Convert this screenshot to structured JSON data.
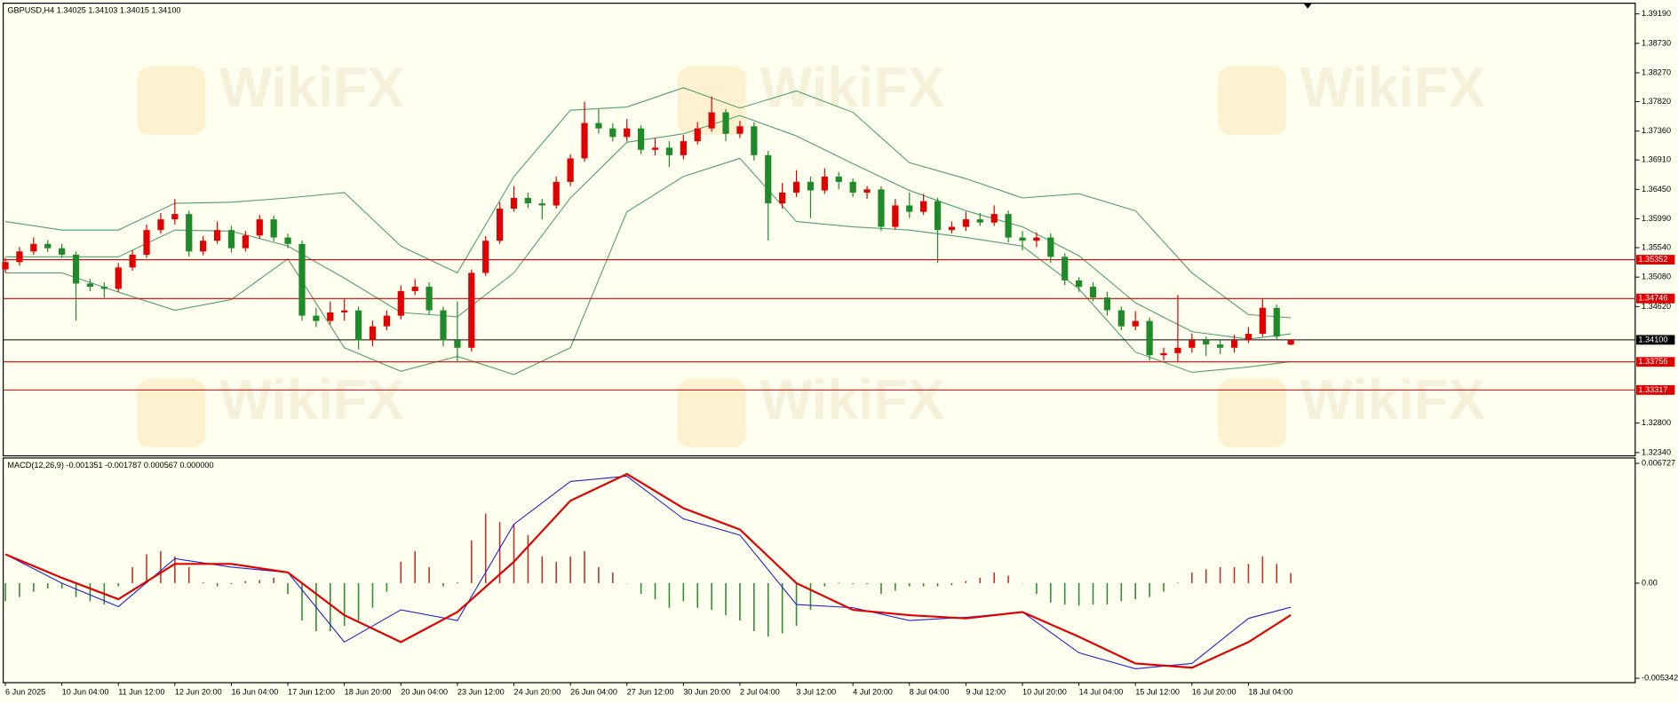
{
  "watermark": "WikiFX",
  "chart_data": [
    {
      "type": "candlestick",
      "title": "GBPUSD,H4  1.34025 1.34103 1.34015 1.34100",
      "categories": [
        "6 Jun 2025",
        null,
        null,
        null,
        "10 Jun 04:00",
        null,
        null,
        null,
        "11 Jun 12:00",
        null,
        null,
        null,
        "12 Jun 20:00",
        null,
        null,
        null,
        "16 Jun 04:00",
        null,
        null,
        null,
        "17 Jun 12:00",
        null,
        null,
        null,
        "18 Jun 20:00",
        null,
        null,
        null,
        "20 Jun 04:00",
        null,
        null,
        null,
        "23 Jun 12:00",
        null,
        null,
        null,
        "24 Jun 20:00",
        null,
        null,
        null,
        "26 Jun 04:00",
        null,
        null,
        null,
        "27 Jun 12:00",
        null,
        null,
        null,
        "30 Jun 20:00",
        null,
        null,
        null,
        "2 Jul 04:00",
        null,
        null,
        null,
        "3 Jul 12:00",
        null,
        null,
        null,
        "4 Jul 20:00",
        null,
        null,
        null,
        "8 Jul 04:00",
        null,
        null,
        null,
        "9 Jul 12:00",
        null,
        null,
        null,
        "10 Jul 20:00",
        null,
        null,
        null,
        "14 Jul 04:00",
        null,
        null,
        null,
        "15 Jul 12:00",
        null,
        null,
        null,
        "16 Jul 20:00",
        null,
        null,
        null,
        "18 Jul 04:00",
        null,
        null,
        null
      ],
      "candles": [
        [
          1.352,
          1.3538,
          1.3515,
          1.35314
        ],
        [
          1.35314,
          1.3555,
          1.3526,
          1.35481
        ],
        [
          1.35481,
          1.357,
          1.3543,
          1.35598
        ],
        [
          1.35598,
          1.3566,
          1.3547,
          1.35531
        ],
        [
          1.35531,
          1.356,
          1.3538,
          1.3543
        ],
        [
          1.3543,
          1.3548,
          1.344,
          1.34979
        ],
        [
          1.34979,
          1.3505,
          1.3486,
          1.34929
        ],
        [
          1.34929,
          1.35,
          1.3476,
          1.34896
        ],
        [
          1.34896,
          1.353,
          1.3485,
          1.3523
        ],
        [
          1.3523,
          1.355,
          1.3518,
          1.3543
        ],
        [
          1.3543,
          1.359,
          1.3538,
          1.35815
        ],
        [
          1.35815,
          1.3608,
          1.3576,
          1.35982
        ],
        [
          1.35982,
          1.363,
          1.359,
          1.36065
        ],
        [
          1.36065,
          1.3612,
          1.354,
          1.35481
        ],
        [
          1.35481,
          1.3572,
          1.3542,
          1.35648
        ],
        [
          1.35648,
          1.3595,
          1.356,
          1.35815
        ],
        [
          1.35815,
          1.3588,
          1.3546,
          1.35531
        ],
        [
          1.35531,
          1.358,
          1.3548,
          1.35731
        ],
        [
          1.35731,
          1.3605,
          1.3568,
          1.35982
        ],
        [
          1.35982,
          1.3604,
          1.3564,
          1.35698
        ],
        [
          1.35698,
          1.3576,
          1.3553,
          1.35598
        ],
        [
          1.35598,
          1.3565,
          1.344,
          1.34478
        ],
        [
          1.34478,
          1.346,
          1.343,
          1.34395
        ],
        [
          1.34395,
          1.347,
          1.3434,
          1.34528
        ],
        [
          1.34528,
          1.3474,
          1.344,
          1.3456
        ],
        [
          1.3456,
          1.3462,
          1.3395,
          1.34094
        ],
        [
          1.34094,
          1.344,
          1.34,
          1.34311
        ],
        [
          1.34311,
          1.3456,
          1.3425,
          1.34478
        ],
        [
          1.34478,
          1.3495,
          1.3442,
          1.34862
        ],
        [
          1.34862,
          1.3505,
          1.348,
          1.34929
        ],
        [
          1.34929,
          1.35,
          1.345,
          1.34562
        ],
        [
          1.34562,
          1.3462,
          1.34,
          1.34094
        ],
        [
          1.34094,
          1.347,
          1.3375,
          1.33977
        ],
        [
          1.33977,
          1.352,
          1.3392,
          1.35146
        ],
        [
          1.35146,
          1.3572,
          1.351,
          1.35648
        ],
        [
          1.35648,
          1.3625,
          1.356,
          1.36149
        ],
        [
          1.36149,
          1.365,
          1.361,
          1.36316
        ],
        [
          1.36316,
          1.364,
          1.3616,
          1.36232
        ],
        [
          1.36232,
          1.363,
          1.3598,
          1.36199
        ],
        [
          1.36199,
          1.3665,
          1.3615,
          1.36567
        ],
        [
          1.36567,
          1.37,
          1.365,
          1.36934
        ],
        [
          1.36934,
          1.3782,
          1.3688,
          1.37486
        ],
        [
          1.37486,
          1.377,
          1.3732,
          1.37402
        ],
        [
          1.37402,
          1.3748,
          1.372,
          1.37268
        ],
        [
          1.37268,
          1.3755,
          1.372,
          1.37402
        ],
        [
          1.37402,
          1.3745,
          1.37,
          1.37068
        ],
        [
          1.37068,
          1.3725,
          1.3698,
          1.37101
        ],
        [
          1.37101,
          1.372,
          1.368,
          1.36984
        ],
        [
          1.36984,
          1.373,
          1.3692,
          1.37202
        ],
        [
          1.37202,
          1.375,
          1.3715,
          1.37402
        ],
        [
          1.37402,
          1.379,
          1.3735,
          1.37653
        ],
        [
          1.37653,
          1.377,
          1.372,
          1.37318
        ],
        [
          1.37318,
          1.3752,
          1.3725,
          1.37435
        ],
        [
          1.37435,
          1.375,
          1.369,
          1.36984
        ],
        [
          1.36984,
          1.3705,
          1.3565,
          1.36232
        ],
        [
          1.36232,
          1.3655,
          1.3615,
          1.364
        ],
        [
          1.364,
          1.3675,
          1.3633,
          1.36567
        ],
        [
          1.36567,
          1.3665,
          1.36,
          1.36433
        ],
        [
          1.36433,
          1.3678,
          1.3638,
          1.3665
        ],
        [
          1.3665,
          1.3672,
          1.3645,
          1.36567
        ],
        [
          1.36567,
          1.3662,
          1.3633,
          1.364
        ],
        [
          1.364,
          1.365,
          1.363,
          1.3645
        ],
        [
          1.3645,
          1.365,
          1.358,
          1.35865
        ],
        [
          1.35865,
          1.363,
          1.3582,
          1.36199
        ],
        [
          1.36199,
          1.364,
          1.36,
          1.36099
        ],
        [
          1.36099,
          1.3638,
          1.3605,
          1.36266
        ],
        [
          1.36266,
          1.3632,
          1.353,
          1.35815
        ],
        [
          1.35815,
          1.3595,
          1.3576,
          1.35865
        ],
        [
          1.35865,
          1.361,
          1.358,
          1.35982
        ],
        [
          1.35982,
          1.3608,
          1.3588,
          1.35932
        ],
        [
          1.35932,
          1.362,
          1.3588,
          1.36065
        ],
        [
          1.36065,
          1.3612,
          1.3562,
          1.35698
        ],
        [
          1.35698,
          1.358,
          1.355,
          1.35648
        ],
        [
          1.35648,
          1.3578,
          1.3555,
          1.35698
        ],
        [
          1.35698,
          1.3576,
          1.353,
          1.35397
        ],
        [
          1.35397,
          1.3545,
          1.3495,
          1.35029
        ],
        [
          1.35029,
          1.3508,
          1.3485,
          1.34929
        ],
        [
          1.34929,
          1.35,
          1.347,
          1.34762
        ],
        [
          1.34762,
          1.3485,
          1.3448,
          1.34562
        ],
        [
          1.34562,
          1.3462,
          1.3425,
          1.34311
        ],
        [
          1.34311,
          1.3455,
          1.3425,
          1.34395
        ],
        [
          1.34395,
          1.3445,
          1.3378,
          1.3386
        ],
        [
          1.3386,
          1.3398,
          1.3378,
          1.33893
        ],
        [
          1.33893,
          1.348,
          1.3375,
          1.33977
        ],
        [
          1.33977,
          1.342,
          1.339,
          1.34094
        ],
        [
          1.34094,
          1.3415,
          1.3385,
          1.34027
        ],
        [
          1.34027,
          1.341,
          1.3388,
          1.33977
        ],
        [
          1.33977,
          1.3418,
          1.339,
          1.34094
        ],
        [
          1.34094,
          1.343,
          1.3405,
          1.34194
        ],
        [
          1.34194,
          1.3475,
          1.3415,
          1.346
        ],
        [
          1.346,
          1.3465,
          1.341,
          1.3415
        ],
        [
          1.34025,
          1.34103,
          1.34015,
          1.341
        ]
      ],
      "up_color": "#e00000",
      "down_color": "#1f8a2a",
      "overlay": {
        "type": "line",
        "x": [
          0,
          4,
          8,
          12,
          16,
          20,
          24,
          28,
          32,
          36,
          40,
          44,
          48,
          52,
          56,
          60,
          64,
          68,
          72,
          76,
          80,
          84,
          88,
          91
        ],
        "series": [
          {
            "color": "#4f9e6e",
            "values": [
              1.35948,
              1.35815,
              1.35815,
              1.36232,
              1.36249,
              1.36316,
              1.364,
              1.35564,
              1.35146,
              1.3665,
              1.37686,
              1.37736,
              1.38037,
              1.3772,
              1.37987,
              1.37653,
              1.36867,
              1.36617,
              1.36316,
              1.36383,
              1.36116,
              1.35146,
              1.34495,
              1.34445
            ]
          },
          {
            "color": "#4f9e6e",
            "values": [
              1.35397,
              1.35397,
              1.35397,
              1.35815,
              1.35798,
              1.35564,
              1.35063,
              1.34528,
              1.34461,
              1.35146,
              1.36316,
              1.37185,
              1.37318,
              1.37603,
              1.37285,
              1.36851,
              1.36433,
              1.36116,
              1.35865,
              1.35414,
              1.34679,
              1.34228,
              1.34111,
              1.34194
            ]
          },
          {
            "color": "#4f9e6e",
            "values": [
              1.35146,
              1.35146,
              1.34846,
              1.34562,
              1.34729,
              1.35364,
              1.33977,
              1.33609,
              1.33843,
              1.33559,
              1.33977,
              1.36099,
              1.3665,
              1.36934,
              1.35948,
              1.35865,
              1.35815,
              1.35698,
              1.35564,
              1.34896,
              1.3391,
              1.33593,
              1.33676,
              1.3376
            ]
          }
        ]
      },
      "levels": {
        "values": [
          1.35352,
          1.34746,
          1.341,
          1.33756,
          1.33317
        ],
        "value_labels": [
          "1.35352",
          "1.34746",
          "1.34100",
          "1.33756",
          "1.33317"
        ],
        "colors": [
          "#e00000",
          "#e00000",
          "#000000",
          "#e00000",
          "#e00000"
        ]
      },
      "ylim": [
        1.32289,
        1.39357
      ],
      "yticks": [
        {
          "value": 1.3919,
          "label": "1.39190"
        },
        {
          "value": 1.3873,
          "label": "1.38730"
        },
        {
          "value": 1.3827,
          "label": "1.38270"
        },
        {
          "value": 1.3782,
          "label": "1.37820"
        },
        {
          "value": 1.3736,
          "label": "1.37360"
        },
        {
          "value": 1.3691,
          "label": "1.36910"
        },
        {
          "value": 1.3645,
          "label": "1.36450"
        },
        {
          "value": 1.3599,
          "label": "1.35990"
        },
        {
          "value": 1.3554,
          "label": "1.35540"
        },
        {
          "value": 1.3508,
          "label": "1.35080"
        },
        {
          "value": 1.3462,
          "label": "1.34620"
        },
        {
          "value": 1.328,
          "label": "1.32800"
        },
        {
          "value": 1.3234,
          "label": "1.32340"
        }
      ]
    },
    {
      "type": "macd",
      "title": "MACD(12,26,9) -0.001351 -0.001787 0.000567 0.000000",
      "histogram": {
        "up_color": "#c0302a",
        "down_color": "#2e8b2e",
        "values": [
          -0.00102,
          -0.00078,
          -0.00048,
          -0.0003,
          -0.0003,
          -0.00078,
          -0.00102,
          -0.0012,
          -0.00018,
          0.0009,
          0.00162,
          0.0018,
          0.0015,
          0.0009,
          5e-05,
          -0.00018,
          -6e-05,
          0.00012,
          0.00018,
          0.0003,
          -0.0006,
          -0.0021,
          -0.0027,
          -0.0027,
          -0.0024,
          -0.0021,
          -0.00138,
          -0.00048,
          0.0012,
          0.0018,
          0.0009,
          -0.00018,
          5e-05,
          0.0024,
          0.0039,
          0.00343,
          0.00331,
          0.0027,
          0.0015,
          0.0012,
          0.0015,
          0.0018,
          0.0009,
          0.0006,
          -2e-05,
          -0.0006,
          -0.0009,
          -0.00138,
          -0.00102,
          -0.00138,
          -0.0015,
          -0.0018,
          -0.0021,
          -0.0027,
          -0.003,
          -0.00282,
          -0.0024,
          -0.0015,
          -0.00018,
          3e-05,
          -6e-05,
          -6e-05,
          -0.0006,
          -0.00042,
          -0.00018,
          -0.00018,
          -0.00018,
          -0.00012,
          0.00012,
          0.0003,
          0.0006,
          0.00042,
          -2e-05,
          -0.0006,
          -0.00108,
          -0.0012,
          -0.00126,
          -0.0012,
          -0.0012,
          -0.00102,
          -0.0009,
          -0.00078,
          -0.00048,
          3e-05,
          0.0006,
          0.00078,
          0.0009,
          0.0009,
          0.00108,
          0.0015,
          0.00108,
          0.000567
        ]
      },
      "lines": {
        "x": [
          0,
          4,
          8,
          12,
          16,
          20,
          24,
          28,
          32,
          36,
          40,
          44,
          48,
          52,
          56,
          60,
          64,
          68,
          72,
          76,
          80,
          84,
          88,
          91
        ],
        "series": [
          {
            "color": "#2020d0",
            "values": [
              0.00162,
              0.0,
              -0.00132,
              0.00138,
              0.0009,
              0.0006,
              -0.00331,
              -0.0015,
              -0.0021,
              0.00331,
              0.00571,
              0.00601,
              0.00361,
              0.0027,
              -0.0012,
              -0.00138,
              -0.0021,
              -0.00192,
              -0.00162,
              -0.00391,
              -0.00481,
              -0.00451,
              -0.00198,
              -0.00135
            ]
          },
          {
            "color": "#e00000",
            "values": [
              0.00162,
              0.0003,
              -0.0009,
              0.00108,
              0.00108,
              0.0006,
              -0.0018,
              -0.00331,
              -0.00162,
              0.0012,
              0.00463,
              0.00613,
              0.00421,
              0.00301,
              0.0,
              -0.0015,
              -0.0018,
              -0.00198,
              -0.00162,
              -0.00301,
              -0.00451,
              -0.00475,
              -0.00331,
              -0.00179
            ]
          }
        ]
      },
      "ylim": [
        -0.00559,
        0.00703
      ],
      "yticks": [
        0.006727,
        {
          "value": 0,
          "label": "0.00"
        },
        -0.005342
      ]
    }
  ]
}
